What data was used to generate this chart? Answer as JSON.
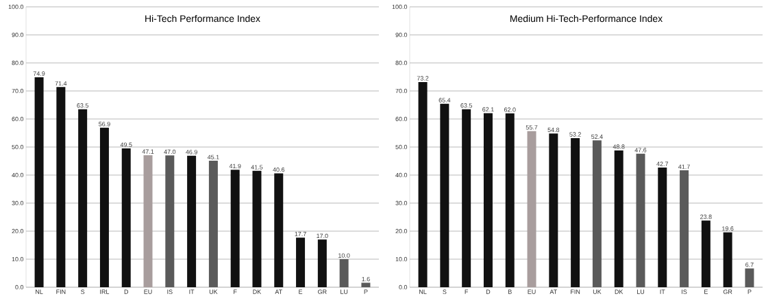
{
  "chart_data": [
    {
      "type": "bar",
      "title": "Hi-Tech Performance Index",
      "categories": [
        "NL",
        "FIN",
        "S",
        "IRL",
        "D",
        "EU",
        "IS",
        "IT",
        "UK",
        "F",
        "DK",
        "AT",
        "E",
        "GR",
        "LU",
        "P"
      ],
      "values": [
        74.9,
        71.4,
        63.5,
        56.9,
        49.5,
        47.1,
        47.0,
        46.9,
        45.1,
        41.9,
        41.5,
        40.6,
        17.7,
        17.0,
        10.0,
        1.6
      ],
      "value_labels": [
        "74.9",
        "71.4",
        "63.5",
        "56.9",
        "49.5",
        "47.1",
        "47.0",
        "46.9",
        "45.1",
        "41.9",
        "41.5",
        "40.6",
        "17.7",
        "17.0",
        "10.0",
        "1.6"
      ],
      "colors": [
        "#111111",
        "#111111",
        "#111111",
        "#111111",
        "#111111",
        "#a89d9d",
        "#5a5a5a",
        "#111111",
        "#5a5a5a",
        "#111111",
        "#111111",
        "#111111",
        "#111111",
        "#111111",
        "#5a5a5a",
        "#5a5a5a"
      ],
      "ylim": [
        0,
        100
      ],
      "yticks": [
        {
          "value": 0,
          "label": "0.0"
        },
        {
          "value": 10,
          "label": "10.0"
        },
        {
          "value": 20,
          "label": "20.0"
        },
        {
          "value": 30,
          "label": "30.0"
        },
        {
          "value": 40,
          "label": "40.0"
        },
        {
          "value": 50,
          "label": "50.0"
        },
        {
          "value": 60,
          "label": "60.0"
        },
        {
          "value": 70,
          "label": "70.0"
        },
        {
          "value": 80,
          "label": "80.0"
        },
        {
          "value": 90,
          "label": "90.0"
        },
        {
          "value": 100,
          "label": "100.0"
        }
      ],
      "grid": "y"
    },
    {
      "type": "bar",
      "title": "Medium Hi-Tech-Performance Index",
      "categories": [
        "NL",
        "S",
        "F",
        "D",
        "B",
        "EU",
        "AT",
        "FIN",
        "UK",
        "DK",
        "LU",
        "IT",
        "IS",
        "E",
        "GR",
        "P"
      ],
      "values": [
        73.2,
        65.4,
        63.5,
        62.1,
        62.0,
        55.7,
        54.8,
        53.2,
        52.4,
        48.8,
        47.6,
        42.7,
        41.7,
        23.8,
        19.6,
        6.7
      ],
      "value_labels": [
        "73.2",
        "65.4",
        "63.5",
        "62.1",
        "62.0",
        "55.7",
        "54.8",
        "53.2",
        "52.4",
        "48.8",
        "47.6",
        "42.7",
        "41.7",
        "23.8",
        "19.6",
        "6.7"
      ],
      "colors": [
        "#111111",
        "#111111",
        "#111111",
        "#111111",
        "#111111",
        "#a89d9d",
        "#111111",
        "#111111",
        "#5a5a5a",
        "#111111",
        "#5a5a5a",
        "#111111",
        "#5a5a5a",
        "#111111",
        "#111111",
        "#5a5a5a"
      ],
      "ylim": [
        0,
        100
      ],
      "yticks": [
        {
          "value": 0,
          "label": "0.0"
        },
        {
          "value": 10,
          "label": "10.0"
        },
        {
          "value": 20,
          "label": "20.0"
        },
        {
          "value": 30,
          "label": "30.0"
        },
        {
          "value": 40,
          "label": "40.0"
        },
        {
          "value": 50,
          "label": "50.0"
        },
        {
          "value": 60,
          "label": "60.0"
        },
        {
          "value": 70,
          "label": "70.0"
        },
        {
          "value": 80,
          "label": "80.0"
        },
        {
          "value": 90,
          "label": "90.0"
        },
        {
          "value": 100,
          "label": "100.0"
        }
      ],
      "grid": "y"
    }
  ]
}
